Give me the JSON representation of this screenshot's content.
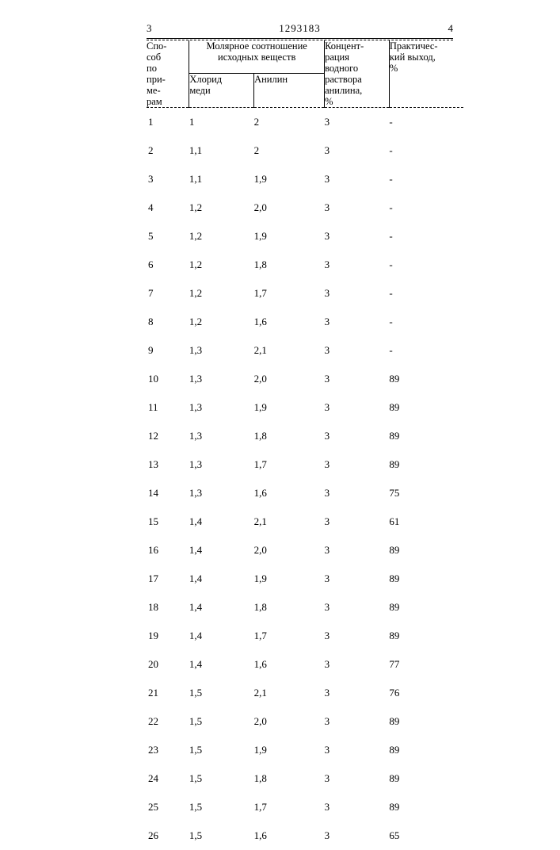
{
  "page": {
    "left_num": "3",
    "doc_num": "1293183",
    "right_num": "4"
  },
  "table": {
    "header": {
      "col1": "Спо-\nсоб\nпо\nпри-\nме-\nрам",
      "col2_group": "Молярное соотношение исходных веществ",
      "col2a": "Хлорид\nмеди",
      "col2b": "Анилин",
      "col3": "Концент-\nрация\nводного\nраствора\nанилина,\n%",
      "col4": "Практичес-\nкий выход,\n%"
    },
    "rows": [
      {
        "n": "1",
        "ch": "1",
        "an": "2",
        "conc": "3",
        "y": "-"
      },
      {
        "n": "2",
        "ch": "1,1",
        "an": "2",
        "conc": "3",
        "y": "-"
      },
      {
        "n": "3",
        "ch": "1,1",
        "an": "1,9",
        "conc": "3",
        "y": "-"
      },
      {
        "n": "4",
        "ch": "1,2",
        "an": "2,0",
        "conc": "3",
        "y": "-"
      },
      {
        "n": "5",
        "ch": "1,2",
        "an": "1,9",
        "conc": "3",
        "y": "-"
      },
      {
        "n": "6",
        "ch": "1,2",
        "an": "1,8",
        "conc": "3",
        "y": "-"
      },
      {
        "n": "7",
        "ch": "1,2",
        "an": "1,7",
        "conc": "3",
        "y": "-"
      },
      {
        "n": "8",
        "ch": "1,2",
        "an": "1,6",
        "conc": "3",
        "y": "-"
      },
      {
        "n": "9",
        "ch": "1,3",
        "an": "2,1",
        "conc": "3",
        "y": "-"
      },
      {
        "n": "10",
        "ch": "1,3",
        "an": "2,0",
        "conc": "3",
        "y": "89"
      },
      {
        "n": "11",
        "ch": "1,3",
        "an": "1,9",
        "conc": "3",
        "y": "89"
      },
      {
        "n": "12",
        "ch": "1,3",
        "an": "1,8",
        "conc": "3",
        "y": "89"
      },
      {
        "n": "13",
        "ch": "1,3",
        "an": "1,7",
        "conc": "3",
        "y": "89"
      },
      {
        "n": "14",
        "ch": "1,3",
        "an": "1,6",
        "conc": "3",
        "y": "75"
      },
      {
        "n": "15",
        "ch": "1,4",
        "an": "2,1",
        "conc": "3",
        "y": "61"
      },
      {
        "n": "16",
        "ch": "1,4",
        "an": "2,0",
        "conc": "3",
        "y": "89"
      },
      {
        "n": "17",
        "ch": "1,4",
        "an": "1,9",
        "conc": "3",
        "y": "89"
      },
      {
        "n": "18",
        "ch": "1,4",
        "an": "1,8",
        "conc": "3",
        "y": "89"
      },
      {
        "n": "19",
        "ch": "1,4",
        "an": "1,7",
        "conc": "3",
        "y": "89"
      },
      {
        "n": "20",
        "ch": "1,4",
        "an": "1,6",
        "conc": "3",
        "y": "77"
      },
      {
        "n": "21",
        "ch": "1,5",
        "an": "2,1",
        "conc": "3",
        "y": "76"
      },
      {
        "n": "22",
        "ch": "1,5",
        "an": "2,0",
        "conc": "3",
        "y": "89"
      },
      {
        "n": "23",
        "ch": "1,5",
        "an": "1,9",
        "conc": "3",
        "y": "89"
      },
      {
        "n": "24",
        "ch": "1,5",
        "an": "1,8",
        "conc": "3",
        "y": "89"
      },
      {
        "n": "25",
        "ch": "1,5",
        "an": "1,7",
        "conc": "3",
        "y": "89"
      },
      {
        "n": "26",
        "ch": "1,5",
        "an": "1,6",
        "conc": "3",
        "y": "65"
      }
    ]
  }
}
